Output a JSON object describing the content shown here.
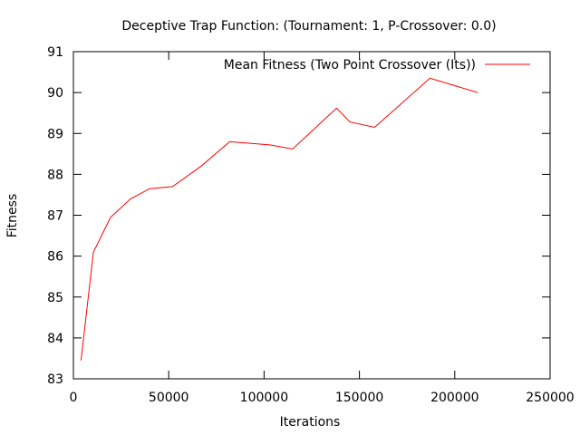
{
  "chart_data": {
    "type": "line",
    "title": "Deceptive Trap Function:  (Tournament: 1, P-Crossover: 0.0)",
    "xlabel": "Iterations",
    "ylabel": "Fitness",
    "xlim": [
      0,
      250000
    ],
    "ylim": [
      83,
      91
    ],
    "xticks": [
      0,
      50000,
      100000,
      150000,
      200000,
      250000
    ],
    "yticks": [
      83,
      84,
      85,
      86,
      87,
      88,
      89,
      90,
      91
    ],
    "grid": false,
    "legend_position": "top-right",
    "series": [
      {
        "name": "Mean Fitness (Two Point Crossover (Its))",
        "color": "#ff0000",
        "x": [
          4000,
          10500,
          19500,
          30000,
          40000,
          52000,
          67000,
          82000,
          103000,
          115000,
          138000,
          145000,
          158000,
          187000,
          212000
        ],
        "y": [
          83.45,
          86.1,
          86.95,
          87.4,
          87.65,
          87.7,
          88.2,
          88.8,
          88.72,
          88.62,
          89.62,
          89.28,
          89.15,
          90.35,
          90.0
        ]
      }
    ]
  }
}
